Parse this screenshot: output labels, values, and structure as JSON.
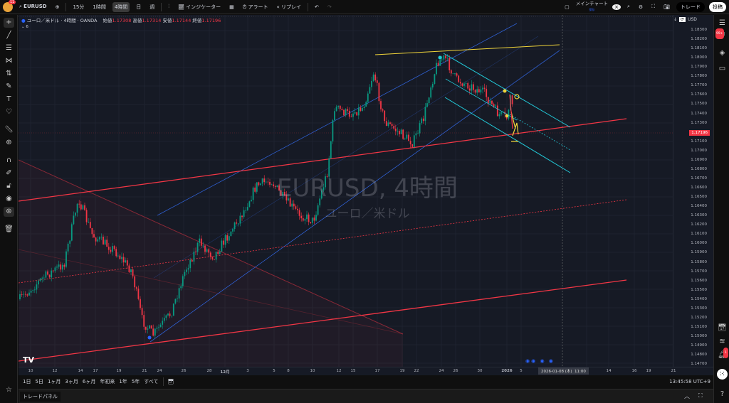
{
  "toolbar": {
    "symbol": "EURUSD",
    "notif_count": "11",
    "intervals": [
      "15分",
      "1時間",
      "4時間",
      "日",
      "週"
    ],
    "active_interval": "4時間",
    "indicators": "インジケーター",
    "alert": "アラート",
    "replay": "リプレイ",
    "layout_name": "メインチャート",
    "layout_sub": "保存",
    "trade": "トレード",
    "publish": "投稿"
  },
  "legend": {
    "title": "ユーロ／米ドル · 4時間 · OANDA",
    "open_label": "始値",
    "open": "1.17308",
    "high_label": "高値",
    "high": "1.17314",
    "low_label": "安値",
    "low": "1.17144",
    "close_label": "終値",
    "close": "1.17196",
    "indicators_count": "6"
  },
  "watermark": {
    "title": "EURUSD, 4時間",
    "subtitle": "ユーロ／米ドル"
  },
  "price_axis": {
    "currency": "USD",
    "labels": [
      "1.18300",
      "1.18200",
      "1.18100",
      "1.18000",
      "1.17900",
      "1.17800",
      "1.17700",
      "1.17600",
      "1.17500",
      "1.17400",
      "1.17300",
      "1.17100",
      "1.17000",
      "1.16900",
      "1.16800",
      "1.16700",
      "1.16600",
      "1.16500",
      "1.16400",
      "1.16300",
      "1.16200",
      "1.16100",
      "1.16000",
      "1.15900",
      "1.15800",
      "1.15700",
      "1.15600",
      "1.15500",
      "1.15400",
      "1.15300",
      "1.15200",
      "1.15100",
      "1.15000",
      "1.14900",
      "1.14800",
      "1.14700"
    ],
    "current_price": "1.17196",
    "current_color": "#f23645"
  },
  "time_axis": {
    "labels": [
      "10",
      "12",
      "14",
      "17",
      "19",
      "21",
      "24",
      "26",
      "28",
      "12月",
      "3",
      "5",
      "8",
      "10",
      "12",
      "15",
      "17",
      "19",
      "22",
      "24",
      "26",
      "30",
      "2026",
      "5",
      "2",
      "14",
      "16",
      "19",
      "21"
    ],
    "crosshair_label": "2026-01-08 (木)  11:00"
  },
  "range_bar": {
    "ranges": [
      "1日",
      "5日",
      "1ヶ月",
      "3ヶ月",
      "6ヶ月",
      "年初来",
      "1年",
      "5年",
      "すべて"
    ],
    "clock": "13:45:58 UTC+9"
  },
  "bottom_panel": {
    "tab": "トレードパネル"
  },
  "right_sidebar": {
    "badge": "99+",
    "alert_badge": "1"
  },
  "colors": {
    "up": "#089981",
    "down": "#f23645",
    "trend_red": "#f23645",
    "channel_cyan": "#22c7d6",
    "channel_blue": "#2f5fd0",
    "top_line": "#f0d43a",
    "background": "#161a25"
  }
}
